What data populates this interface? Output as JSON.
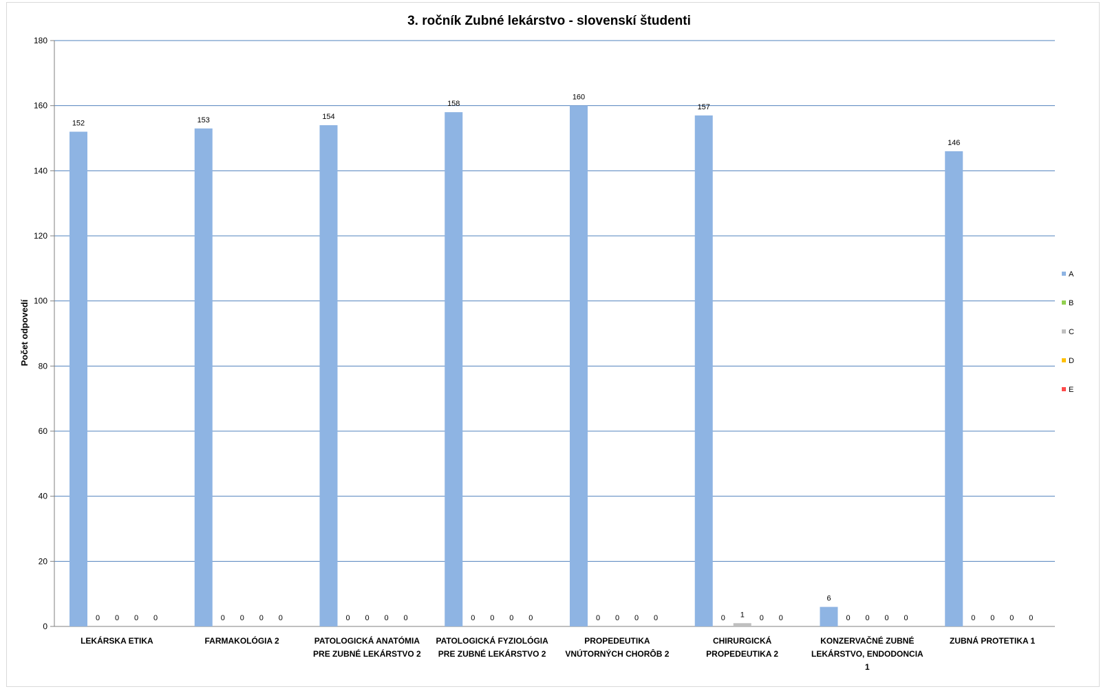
{
  "chart_data": {
    "type": "bar",
    "title": "3. ročník Zubné lekárstvo - slovenskí študenti",
    "xlabel": "",
    "ylabel": "Počet odpovedí",
    "ylim": [
      0,
      180
    ],
    "yticks": [
      0,
      20,
      40,
      60,
      80,
      100,
      120,
      140,
      160,
      180
    ],
    "grid": true,
    "legend_position": "right",
    "categories": [
      [
        "LEKÁRSKA ETIKA"
      ],
      [
        "FARMAKOLÓGIA 2"
      ],
      [
        "PATOLOGICKÁ ANATÓMIA",
        "PRE ZUBNÉ LEKÁRSTVO 2"
      ],
      [
        "PATOLOGICKÁ FYZIOLÓGIA",
        "PRE ZUBNÉ LEKÁRSTVO 2"
      ],
      [
        "PROPEDEUTIKA",
        "VNÚTORNÝCH CHORÔB 2"
      ],
      [
        "CHIRURGICKÁ",
        "PROPEDEUTIKA 2"
      ],
      [
        "KONZERVAČNÉ ZUBNÉ",
        "LEKÁRSTVO, ENDODONCIA",
        "1"
      ],
      [
        "ZUBNÁ PROTETIKA 1"
      ]
    ],
    "series": [
      {
        "name": "A",
        "color": "#8eb4e3",
        "values": [
          152,
          153,
          154,
          158,
          160,
          157,
          6,
          146
        ]
      },
      {
        "name": "B",
        "color": "#92d050",
        "values": [
          0,
          0,
          0,
          0,
          0,
          0,
          0,
          0
        ]
      },
      {
        "name": "C",
        "color": "#bfbfbf",
        "values": [
          0,
          0,
          0,
          0,
          0,
          1,
          0,
          0
        ]
      },
      {
        "name": "D",
        "color": "#ffc000",
        "values": [
          0,
          0,
          0,
          0,
          0,
          0,
          0,
          0
        ]
      },
      {
        "name": "E",
        "color": "#ff4b4b",
        "values": [
          0,
          0,
          0,
          0,
          0,
          0,
          0,
          0
        ]
      }
    ]
  },
  "colors": {
    "gridline": "#4f81bd",
    "axis": "#7f7f7f"
  }
}
